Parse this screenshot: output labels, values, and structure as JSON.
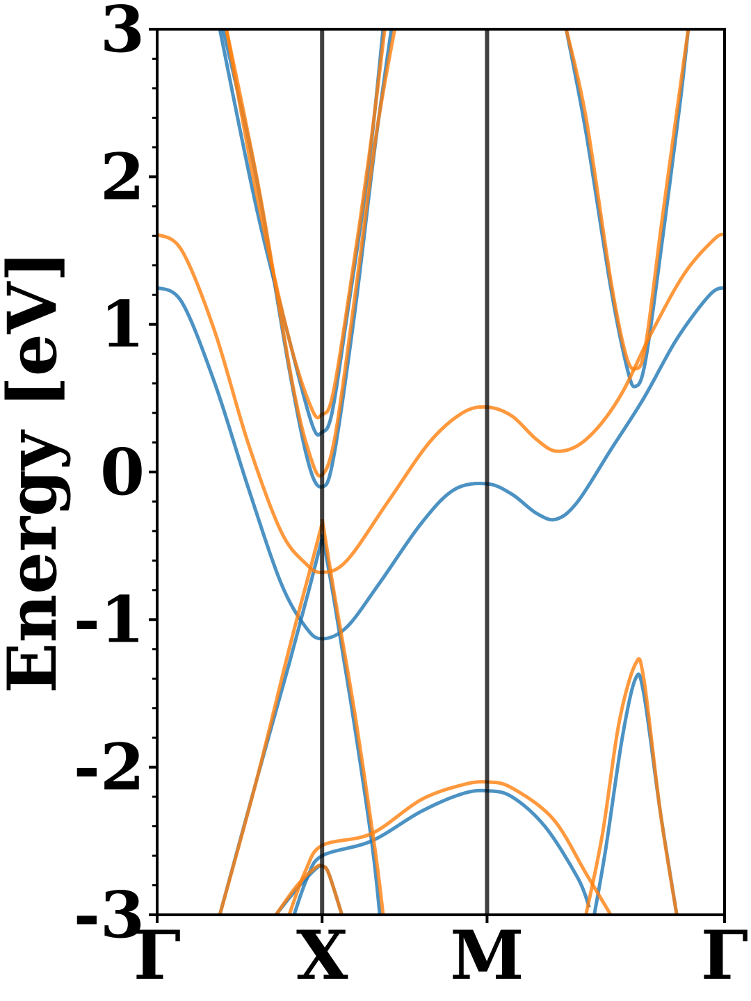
{
  "chart_data": {
    "type": "line",
    "title": "",
    "ylabel": "Energy [eV]",
    "xlabel": "",
    "ylim": [
      -3,
      3
    ],
    "xlim": [
      0,
      3.44
    ],
    "grid": false,
    "legend": "none",
    "y_ticks": [
      {
        "value": 3,
        "label": "3"
      },
      {
        "value": 2,
        "label": "2"
      },
      {
        "value": 1,
        "label": "1"
      },
      {
        "value": 0,
        "label": "0"
      },
      {
        "value": -1,
        "label": "-1"
      },
      {
        "value": -2,
        "label": "-2"
      },
      {
        "value": -3,
        "label": "-3"
      }
    ],
    "y_minor_step": 0.2,
    "x_ticks": [
      {
        "value": 0,
        "label": "Γ"
      },
      {
        "value": 1,
        "label": "X"
      },
      {
        "value": 2,
        "label": "M"
      },
      {
        "value": 3.44,
        "label": "Γ"
      }
    ],
    "vlines": [
      1,
      2
    ],
    "series": [
      {
        "color": "#1f77b4",
        "bands": [
          [
            [
              0,
              1.25
            ],
            [
              0.15,
              1.15
            ],
            [
              0.35,
              0.6
            ],
            [
              0.55,
              -0.1
            ],
            [
              0.75,
              -0.75
            ],
            [
              0.9,
              -1.05
            ],
            [
              1,
              -1.13
            ],
            [
              1.15,
              -1.05
            ],
            [
              1.35,
              -0.75
            ],
            [
              1.6,
              -0.35
            ],
            [
              1.8,
              -0.12
            ],
            [
              2,
              -0.08
            ],
            [
              2.15,
              -0.15
            ],
            [
              2.3,
              -0.28
            ],
            [
              2.42,
              -0.32
            ],
            [
              2.55,
              -0.2
            ],
            [
              2.75,
              0.15
            ],
            [
              2.95,
              0.5
            ],
            [
              3.15,
              0.9
            ],
            [
              3.35,
              1.2
            ],
            [
              3.44,
              1.25
            ]
          ],
          [
            [
              0.38,
              3
            ],
            [
              0.6,
              1.8
            ],
            [
              0.8,
              0.9
            ],
            [
              0.94,
              0.32
            ],
            [
              1,
              0.27
            ],
            [
              1.06,
              0.4
            ],
            [
              1.15,
              1.05
            ],
            [
              1.28,
              2.05
            ],
            [
              1.37,
              3
            ]
          ],
          [
            [
              0.4,
              3
            ],
            [
              0.6,
              2.0
            ],
            [
              0.8,
              0.7
            ],
            [
              0.92,
              0.05
            ],
            [
              1,
              -0.1
            ],
            [
              1.07,
              0.1
            ],
            [
              1.2,
              1.1
            ],
            [
              1.32,
              2.2
            ],
            [
              1.42,
              3
            ]
          ],
          [
            [
              1,
              -0.42
            ],
            [
              1.07,
              -0.85
            ],
            [
              1.18,
              -1.6
            ],
            [
              1.3,
              -2.5
            ],
            [
              1.35,
              -3
            ]
          ],
          [
            [
              0.38,
              -3
            ],
            [
              0.6,
              -2.1
            ],
            [
              0.8,
              -1.3
            ],
            [
              0.92,
              -0.8
            ],
            [
              1,
              -0.45
            ]
          ],
          [
            [
              0.72,
              -3
            ],
            [
              0.85,
              -2.82
            ],
            [
              0.96,
              -2.69
            ],
            [
              1,
              -2.67
            ],
            [
              1.04,
              -2.72
            ],
            [
              1.12,
              -3
            ]
          ],
          [
            [
              0.83,
              -3
            ],
            [
              0.91,
              -2.75
            ],
            [
              1,
              -2.6
            ],
            [
              1.3,
              -2.5
            ],
            [
              1.6,
              -2.3
            ],
            [
              1.85,
              -2.18
            ],
            [
              2,
              -2.16
            ],
            [
              2.15,
              -2.2
            ],
            [
              2.35,
              -2.4
            ],
            [
              2.55,
              -2.75
            ],
            [
              2.62,
              -2.95
            ]
          ],
          [
            [
              2.65,
              -3
            ],
            [
              2.72,
              -2.55
            ],
            [
              2.82,
              -1.8
            ],
            [
              2.9,
              -1.4
            ],
            [
              2.95,
              -1.5
            ],
            [
              3.05,
              -2.3
            ],
            [
              3.15,
              -3
            ]
          ],
          [
            [
              2.48,
              3
            ],
            [
              2.6,
              2.3
            ],
            [
              2.75,
              1.25
            ],
            [
              2.85,
              0.7
            ],
            [
              2.9,
              0.58
            ],
            [
              2.96,
              0.75
            ],
            [
              3.06,
              1.55
            ],
            [
              3.17,
              2.5
            ],
            [
              3.22,
              3
            ]
          ]
        ]
      },
      {
        "color": "#ff7f0e",
        "bands": [
          [
            [
              0,
              1.61
            ],
            [
              0.15,
              1.5
            ],
            [
              0.35,
              0.95
            ],
            [
              0.55,
              0.2
            ],
            [
              0.75,
              -0.4
            ],
            [
              0.9,
              -0.62
            ],
            [
              1,
              -0.68
            ],
            [
              1.15,
              -0.6
            ],
            [
              1.4,
              -0.2
            ],
            [
              1.65,
              0.2
            ],
            [
              1.85,
              0.4
            ],
            [
              2,
              0.44
            ],
            [
              2.15,
              0.38
            ],
            [
              2.3,
              0.22
            ],
            [
              2.43,
              0.14
            ],
            [
              2.6,
              0.22
            ],
            [
              2.8,
              0.5
            ],
            [
              3.0,
              0.95
            ],
            [
              3.2,
              1.35
            ],
            [
              3.38,
              1.58
            ],
            [
              3.44,
              1.61
            ]
          ],
          [
            [
              0.42,
              3
            ],
            [
              0.6,
              1.9
            ],
            [
              0.8,
              0.9
            ],
            [
              0.94,
              0.42
            ],
            [
              1,
              0.39
            ],
            [
              1.06,
              0.5
            ],
            [
              1.15,
              1.1
            ],
            [
              1.28,
              2.1
            ],
            [
              1.38,
              3
            ]
          ],
          [
            [
              0.42,
              3
            ],
            [
              0.62,
              1.9
            ],
            [
              0.82,
              0.6
            ],
            [
              0.93,
              0.1
            ],
            [
              1,
              -0.02
            ],
            [
              1.08,
              0.25
            ],
            [
              1.2,
              1.2
            ],
            [
              1.33,
              2.3
            ],
            [
              1.44,
              3
            ]
          ],
          [
            [
              1,
              -0.32
            ],
            [
              1.07,
              -0.8
            ],
            [
              1.2,
              -1.65
            ],
            [
              1.32,
              -2.55
            ],
            [
              1.37,
              -3
            ]
          ],
          [
            [
              0.38,
              -3
            ],
            [
              0.6,
              -2.1
            ],
            [
              0.8,
              -1.2
            ],
            [
              0.93,
              -0.65
            ],
            [
              1,
              -0.35
            ]
          ],
          [
            [
              0.72,
              -3
            ],
            [
              0.85,
              -2.8
            ],
            [
              0.96,
              -2.68
            ],
            [
              1,
              -2.67
            ],
            [
              1.04,
              -2.72
            ],
            [
              1.12,
              -3
            ]
          ],
          [
            [
              0.8,
              -3
            ],
            [
              0.9,
              -2.7
            ],
            [
              1,
              -2.53
            ],
            [
              1.3,
              -2.45
            ],
            [
              1.6,
              -2.22
            ],
            [
              1.85,
              -2.12
            ],
            [
              2,
              -2.1
            ],
            [
              2.15,
              -2.14
            ],
            [
              2.4,
              -2.35
            ],
            [
              2.6,
              -2.72
            ],
            [
              2.75,
              -3
            ]
          ],
          [
            [
              2.6,
              -3
            ],
            [
              2.7,
              -2.45
            ],
            [
              2.8,
              -1.7
            ],
            [
              2.9,
              -1.3
            ],
            [
              2.95,
              -1.4
            ],
            [
              3.05,
              -2.3
            ],
            [
              3.15,
              -3
            ]
          ],
          [
            [
              2.48,
              3
            ],
            [
              2.6,
              2.4
            ],
            [
              2.75,
              1.3
            ],
            [
              2.84,
              0.8
            ],
            [
              2.9,
              0.7
            ],
            [
              2.96,
              0.85
            ],
            [
              3.06,
              1.7
            ],
            [
              3.17,
              2.6
            ],
            [
              3.22,
              3
            ]
          ]
        ]
      }
    ]
  }
}
